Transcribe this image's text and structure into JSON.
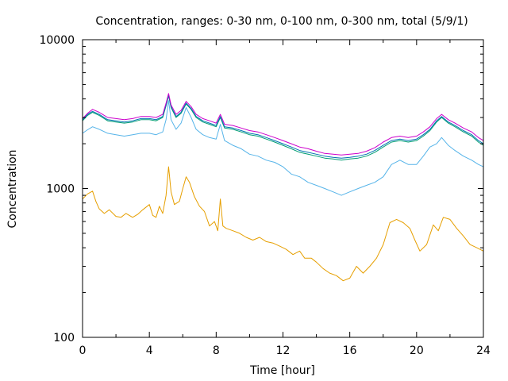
{
  "chart_data": {
    "type": "line",
    "title": "Concentration, ranges: 0-30 nm, 0-100 nm, 0-300 nm, total (5/9/1)",
    "xlabel": "Time [hour]",
    "ylabel": "Concentration",
    "xlim": [
      0,
      24
    ],
    "ylim": [
      100,
      10000
    ],
    "yscale": "log",
    "grid": false,
    "legend": "none",
    "x_ticks": [
      0,
      4,
      8,
      12,
      16,
      20,
      24
    ],
    "y_ticks": [
      100,
      1000,
      10000
    ],
    "x_tick_labels": [
      "0",
      "4",
      "8",
      "12",
      "16",
      "20",
      "24"
    ],
    "y_tick_labels": [
      "100",
      "1000",
      "10000"
    ],
    "series": [
      {
        "color": "#e69f00",
        "points": [
          [
            0,
            850
          ],
          [
            0.3,
            920
          ],
          [
            0.6,
            960
          ],
          [
            0.8,
            820
          ],
          [
            1,
            730
          ],
          [
            1.3,
            680
          ],
          [
            1.6,
            720
          ],
          [
            2,
            650
          ],
          [
            2.3,
            640
          ],
          [
            2.6,
            680
          ],
          [
            3,
            640
          ],
          [
            3.3,
            670
          ],
          [
            3.6,
            720
          ],
          [
            4,
            780
          ],
          [
            4.2,
            660
          ],
          [
            4.4,
            640
          ],
          [
            4.6,
            760
          ],
          [
            4.8,
            680
          ],
          [
            5,
            900
          ],
          [
            5.15,
            1400
          ],
          [
            5.3,
            950
          ],
          [
            5.5,
            780
          ],
          [
            5.8,
            820
          ],
          [
            6,
            1000
          ],
          [
            6.2,
            1200
          ],
          [
            6.4,
            1100
          ],
          [
            6.7,
            880
          ],
          [
            7,
            760
          ],
          [
            7.3,
            700
          ],
          [
            7.6,
            560
          ],
          [
            7.9,
            600
          ],
          [
            8.1,
            520
          ],
          [
            8.25,
            850
          ],
          [
            8.4,
            560
          ],
          [
            8.6,
            540
          ],
          [
            9,
            520
          ],
          [
            9.4,
            500
          ],
          [
            9.8,
            470
          ],
          [
            10.2,
            450
          ],
          [
            10.6,
            470
          ],
          [
            11,
            440
          ],
          [
            11.4,
            430
          ],
          [
            11.8,
            410
          ],
          [
            12.2,
            390
          ],
          [
            12.6,
            360
          ],
          [
            13,
            380
          ],
          [
            13.3,
            340
          ],
          [
            13.7,
            340
          ],
          [
            14,
            320
          ],
          [
            14.4,
            290
          ],
          [
            14.8,
            270
          ],
          [
            15.2,
            260
          ],
          [
            15.6,
            240
          ],
          [
            16,
            250
          ],
          [
            16.4,
            300
          ],
          [
            16.8,
            270
          ],
          [
            17.2,
            300
          ],
          [
            17.6,
            340
          ],
          [
            18,
            420
          ],
          [
            18.4,
            590
          ],
          [
            18.8,
            620
          ],
          [
            19.2,
            590
          ],
          [
            19.6,
            540
          ],
          [
            19.9,
            450
          ],
          [
            20.2,
            380
          ],
          [
            20.6,
            420
          ],
          [
            21,
            570
          ],
          [
            21.3,
            520
          ],
          [
            21.6,
            640
          ],
          [
            22,
            620
          ],
          [
            22.4,
            540
          ],
          [
            22.8,
            480
          ],
          [
            23.2,
            420
          ],
          [
            23.6,
            400
          ],
          [
            24,
            380
          ]
        ]
      },
      {
        "color": "#56b4e9",
        "points": [
          [
            0,
            2350
          ],
          [
            0.3,
            2480
          ],
          [
            0.6,
            2600
          ],
          [
            1,
            2500
          ],
          [
            1.5,
            2350
          ],
          [
            2,
            2300
          ],
          [
            2.5,
            2250
          ],
          [
            3,
            2300
          ],
          [
            3.5,
            2350
          ],
          [
            4,
            2350
          ],
          [
            4.4,
            2300
          ],
          [
            4.8,
            2400
          ],
          [
            5,
            2900
          ],
          [
            5.15,
            3900
          ],
          [
            5.3,
            2900
          ],
          [
            5.6,
            2500
          ],
          [
            5.9,
            2750
          ],
          [
            6.2,
            3500
          ],
          [
            6.5,
            3000
          ],
          [
            6.8,
            2500
          ],
          [
            7.2,
            2300
          ],
          [
            7.6,
            2200
          ],
          [
            8,
            2150
          ],
          [
            8.25,
            2700
          ],
          [
            8.5,
            2100
          ],
          [
            9,
            1950
          ],
          [
            9.5,
            1850
          ],
          [
            10,
            1700
          ],
          [
            10.5,
            1650
          ],
          [
            11,
            1550
          ],
          [
            11.5,
            1500
          ],
          [
            12,
            1400
          ],
          [
            12.5,
            1250
          ],
          [
            13,
            1200
          ],
          [
            13.5,
            1100
          ],
          [
            14,
            1050
          ],
          [
            14.5,
            1000
          ],
          [
            15,
            950
          ],
          [
            15.5,
            900
          ],
          [
            16,
            950
          ],
          [
            16.5,
            1000
          ],
          [
            17,
            1050
          ],
          [
            17.5,
            1100
          ],
          [
            18,
            1200
          ],
          [
            18.5,
            1450
          ],
          [
            19,
            1550
          ],
          [
            19.5,
            1450
          ],
          [
            20,
            1450
          ],
          [
            20.4,
            1650
          ],
          [
            20.8,
            1900
          ],
          [
            21.2,
            2000
          ],
          [
            21.5,
            2200
          ],
          [
            21.9,
            1950
          ],
          [
            22.3,
            1800
          ],
          [
            22.8,
            1650
          ],
          [
            23.3,
            1550
          ],
          [
            23.7,
            1450
          ],
          [
            24,
            1400
          ]
        ]
      },
      {
        "color": "#009e73",
        "points": [
          [
            0,
            2850
          ],
          [
            0.3,
            3100
          ],
          [
            0.6,
            3250
          ],
          [
            1,
            3100
          ],
          [
            1.5,
            2850
          ],
          [
            2,
            2800
          ],
          [
            2.5,
            2750
          ],
          [
            3,
            2800
          ],
          [
            3.5,
            2900
          ],
          [
            4,
            2900
          ],
          [
            4.4,
            2850
          ],
          [
            4.8,
            3000
          ],
          [
            5,
            3600
          ],
          [
            5.15,
            4200
          ],
          [
            5.3,
            3500
          ],
          [
            5.6,
            3000
          ],
          [
            5.9,
            3200
          ],
          [
            6.2,
            3700
          ],
          [
            6.5,
            3400
          ],
          [
            6.8,
            3000
          ],
          [
            7.2,
            2800
          ],
          [
            7.6,
            2700
          ],
          [
            8,
            2600
          ],
          [
            8.25,
            3000
          ],
          [
            8.5,
            2550
          ],
          [
            9,
            2500
          ],
          [
            9.5,
            2400
          ],
          [
            10,
            2300
          ],
          [
            10.5,
            2250
          ],
          [
            11,
            2150
          ],
          [
            11.5,
            2050
          ],
          [
            12,
            1950
          ],
          [
            12.5,
            1850
          ],
          [
            13,
            1750
          ],
          [
            13.5,
            1700
          ],
          [
            14,
            1650
          ],
          [
            14.5,
            1600
          ],
          [
            15,
            1580
          ],
          [
            15.5,
            1550
          ],
          [
            16,
            1580
          ],
          [
            16.5,
            1600
          ],
          [
            17,
            1650
          ],
          [
            17.5,
            1750
          ],
          [
            18,
            1900
          ],
          [
            18.5,
            2050
          ],
          [
            19,
            2100
          ],
          [
            19.5,
            2050
          ],
          [
            20,
            2100
          ],
          [
            20.4,
            2250
          ],
          [
            20.8,
            2450
          ],
          [
            21.2,
            2800
          ],
          [
            21.5,
            3000
          ],
          [
            21.9,
            2750
          ],
          [
            22.3,
            2600
          ],
          [
            22.8,
            2400
          ],
          [
            23.3,
            2250
          ],
          [
            23.7,
            2050
          ],
          [
            24,
            1950
          ]
        ]
      },
      {
        "color": "#0072b2",
        "points": [
          [
            0,
            2900
          ],
          [
            0.3,
            3150
          ],
          [
            0.6,
            3300
          ],
          [
            1,
            3150
          ],
          [
            1.5,
            2900
          ],
          [
            2,
            2850
          ],
          [
            2.5,
            2800
          ],
          [
            3,
            2850
          ],
          [
            3.5,
            2950
          ],
          [
            4,
            2950
          ],
          [
            4.4,
            2900
          ],
          [
            4.8,
            3050
          ],
          [
            5,
            3650
          ],
          [
            5.15,
            4250
          ],
          [
            5.3,
            3550
          ],
          [
            5.6,
            3050
          ],
          [
            5.9,
            3250
          ],
          [
            6.2,
            3750
          ],
          [
            6.5,
            3450
          ],
          [
            6.8,
            3050
          ],
          [
            7.2,
            2850
          ],
          [
            7.6,
            2750
          ],
          [
            8,
            2650
          ],
          [
            8.25,
            3050
          ],
          [
            8.5,
            2600
          ],
          [
            9,
            2550
          ],
          [
            9.5,
            2450
          ],
          [
            10,
            2350
          ],
          [
            10.5,
            2300
          ],
          [
            11,
            2200
          ],
          [
            11.5,
            2100
          ],
          [
            12,
            2000
          ],
          [
            12.5,
            1900
          ],
          [
            13,
            1800
          ],
          [
            13.5,
            1750
          ],
          [
            14,
            1700
          ],
          [
            14.5,
            1650
          ],
          [
            15,
            1620
          ],
          [
            15.5,
            1600
          ],
          [
            16,
            1620
          ],
          [
            16.5,
            1650
          ],
          [
            17,
            1700
          ],
          [
            17.5,
            1800
          ],
          [
            18,
            1950
          ],
          [
            18.5,
            2100
          ],
          [
            19,
            2150
          ],
          [
            19.5,
            2100
          ],
          [
            20,
            2150
          ],
          [
            20.4,
            2300
          ],
          [
            20.8,
            2500
          ],
          [
            21.2,
            2850
          ],
          [
            21.5,
            3050
          ],
          [
            21.9,
            2800
          ],
          [
            22.3,
            2650
          ],
          [
            22.8,
            2450
          ],
          [
            23.3,
            2300
          ],
          [
            23.7,
            2100
          ],
          [
            24,
            2000
          ]
        ]
      },
      {
        "color": "#cc00cc",
        "points": [
          [
            0,
            2950
          ],
          [
            0.3,
            3200
          ],
          [
            0.6,
            3400
          ],
          [
            1,
            3250
          ],
          [
            1.5,
            3000
          ],
          [
            2,
            2950
          ],
          [
            2.5,
            2900
          ],
          [
            3,
            2950
          ],
          [
            3.5,
            3050
          ],
          [
            4,
            3050
          ],
          [
            4.4,
            3000
          ],
          [
            4.8,
            3150
          ],
          [
            5,
            3750
          ],
          [
            5.15,
            4350
          ],
          [
            5.3,
            3650
          ],
          [
            5.6,
            3150
          ],
          [
            5.9,
            3350
          ],
          [
            6.2,
            3850
          ],
          [
            6.5,
            3550
          ],
          [
            6.8,
            3150
          ],
          [
            7.2,
            2950
          ],
          [
            7.6,
            2850
          ],
          [
            8,
            2750
          ],
          [
            8.25,
            3150
          ],
          [
            8.5,
            2700
          ],
          [
            9,
            2650
          ],
          [
            9.5,
            2550
          ],
          [
            10,
            2450
          ],
          [
            10.5,
            2400
          ],
          [
            11,
            2300
          ],
          [
            11.5,
            2200
          ],
          [
            12,
            2100
          ],
          [
            12.5,
            2000
          ],
          [
            13,
            1900
          ],
          [
            13.5,
            1850
          ],
          [
            14,
            1780
          ],
          [
            14.5,
            1720
          ],
          [
            15,
            1700
          ],
          [
            15.5,
            1680
          ],
          [
            16,
            1700
          ],
          [
            16.5,
            1720
          ],
          [
            17,
            1780
          ],
          [
            17.5,
            1880
          ],
          [
            18,
            2050
          ],
          [
            18.5,
            2200
          ],
          [
            19,
            2250
          ],
          [
            19.5,
            2200
          ],
          [
            20,
            2250
          ],
          [
            20.4,
            2400
          ],
          [
            20.8,
            2600
          ],
          [
            21.2,
            2950
          ],
          [
            21.5,
            3150
          ],
          [
            21.9,
            2900
          ],
          [
            22.3,
            2750
          ],
          [
            22.8,
            2550
          ],
          [
            23.3,
            2400
          ],
          [
            23.7,
            2200
          ],
          [
            24,
            2100
          ]
        ]
      }
    ]
  }
}
